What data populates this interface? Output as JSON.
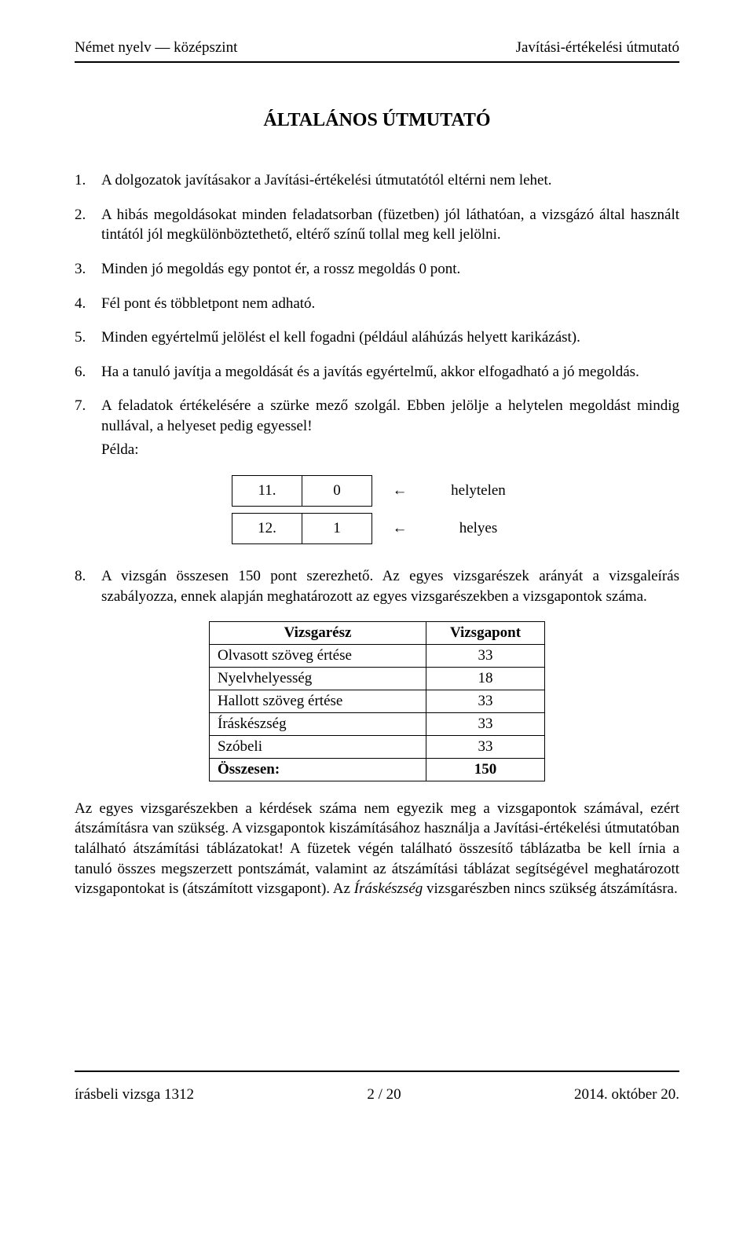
{
  "header": {
    "left": "Német nyelv — középszint",
    "right": "Javítási-értékelési útmutató"
  },
  "title": "ÁLTALÁNOS ÚTMUTATÓ",
  "items": {
    "n1": "1.",
    "t1": "A dolgozatok javításakor a Javítási-értékelési útmutatótól eltérni nem lehet.",
    "n2": "2.",
    "t2": "A hibás megoldásokat minden feladatsorban (füzetben) jól láthatóan, a vizsgázó által használt tintától jól megkülönböztethető, eltérő színű tollal meg kell jelölni.",
    "n3": "3.",
    "t3": "Minden jó megoldás egy pontot ér, a rossz megoldás 0 pont.",
    "n4": "4.",
    "t4": "Fél pont és többletpont nem adható.",
    "n5": "5.",
    "t5": "Minden egyértelmű jelölést el kell fogadni (például aláhúzás helyett karikázást).",
    "n6": "6.",
    "t6": "Ha a tanuló javítja a megoldását és a javítás egyértelmű, akkor elfogadható a jó megoldás.",
    "n7": "7.",
    "t7": "A feladatok értékelésére a szürke mező szolgál. Ebben jelölje a helytelen megoldást mindig nullával, a helyeset pedig egyessel!",
    "example_label": "Példa:",
    "n8": "8.",
    "t8": "A vizsgán összesen 150 pont szerezhető. Az egyes vizsgarészek arányát a vizsgaleírás szabályozza, ennek alapján meghatározott az egyes vizsgarészekben a vizsgapontok száma."
  },
  "example": {
    "r1c1": "11.",
    "r1c2": "0",
    "arrow": "←",
    "r1label": "helytelen",
    "r2c1": "12.",
    "r2c2": "1",
    "r2label": "helyes"
  },
  "summary": {
    "h1": "Vizsgarész",
    "h2": "Vizsgapont",
    "rows": [
      {
        "name": "Olvasott szöveg értése",
        "val": "33"
      },
      {
        "name": "Nyelvhelyesség",
        "val": "18"
      },
      {
        "name": "Hallott szöveg értése",
        "val": "33"
      },
      {
        "name": "Íráskészség",
        "val": "33"
      },
      {
        "name": "Szóbeli",
        "val": "33"
      }
    ],
    "total_name": "Összesen:",
    "total_val": "150"
  },
  "after": {
    "p": "Az egyes vizsgarészekben a kérdések száma nem egyezik meg a vizsgapontok számával, ezért átszámításra van szükség. A vizsgapontok kiszámításához használja a Javítási-értékelési útmutatóban található átszámítási táblázatokat! A füzetek végén található összesítő táblázatba be kell írnia a tanuló összes megszerzett pontszámát, valamint az átszámítási táblázat segítségével meghatározott vizsgapontokat is (átszámított vizsgapont). Az ",
    "italic": "Íráskészség",
    "tail": " vizsgarészben nincs szükség átszámításra."
  },
  "footer": {
    "left": "írásbeli vizsga 1312",
    "center": "2 / 20",
    "right": "2014. október 20."
  }
}
